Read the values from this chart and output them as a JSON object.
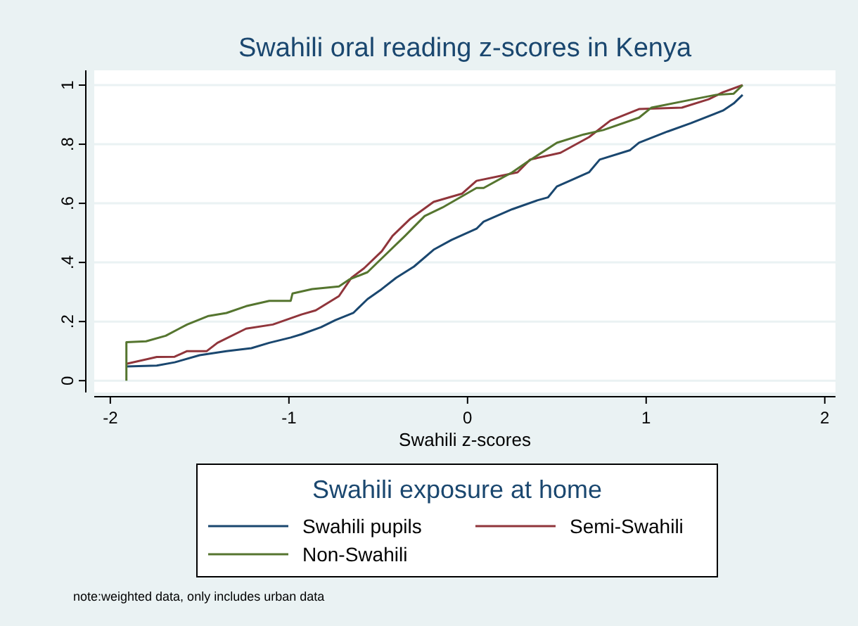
{
  "chart_data": {
    "type": "line",
    "title": "Swahili oral reading z-scores in Kenya",
    "xlabel": "Swahili z-scores",
    "legend_title": "Swahili exposure at home",
    "legend": "bottom",
    "grid": "y",
    "line_style": "solid",
    "marker": "none",
    "xlim": [
      -2.09,
      2.06
    ],
    "xticks": [
      -2,
      -1,
      0,
      1,
      2
    ],
    "ylim": [
      -0.04,
      1.05
    ],
    "yticks": [
      0,
      {
        "value": 0.2,
        "label": ".2"
      },
      {
        "value": 0.4,
        "label": ".4"
      },
      {
        "value": 0.6,
        "label": ".6"
      },
      {
        "value": 0.8,
        "label": ".8"
      },
      1
    ],
    "series": [
      {
        "name": "Swahili pupils",
        "color": "#1a476f",
        "x": [
          -1.91,
          -1.74,
          -1.64,
          -1.5,
          -1.35,
          -1.21,
          -1.11,
          -0.99,
          -0.93,
          -0.82,
          -0.74,
          -0.64,
          -0.56,
          -0.48,
          -0.4,
          -0.3,
          -0.19,
          -0.09,
          0.05,
          0.09,
          0.25,
          0.39,
          0.45,
          0.5,
          0.68,
          0.74,
          0.91,
          0.96,
          1.12,
          1.25,
          1.43,
          1.49,
          1.54
        ],
        "values": [
          0.048,
          0.051,
          0.062,
          0.086,
          0.1,
          0.11,
          0.128,
          0.146,
          0.157,
          0.181,
          0.205,
          0.229,
          0.276,
          0.31,
          0.348,
          0.386,
          0.443,
          0.476,
          0.514,
          0.538,
          0.58,
          0.61,
          0.62,
          0.657,
          0.705,
          0.748,
          0.78,
          0.805,
          0.843,
          0.871,
          0.914,
          0.938,
          0.967
        ]
      },
      {
        "name": "Semi-Swahili",
        "color": "#90353b",
        "x": [
          -1.91,
          -1.74,
          -1.64,
          -1.57,
          -1.46,
          -1.4,
          -1.24,
          -1.09,
          -0.93,
          -0.85,
          -0.72,
          -0.65,
          -0.58,
          -0.48,
          -0.42,
          -0.32,
          -0.19,
          -0.03,
          0.05,
          0.28,
          0.35,
          0.52,
          0.68,
          0.8,
          0.96,
          1.2,
          1.35,
          1.43,
          1.54
        ],
        "values": [
          0.057,
          0.08,
          0.081,
          0.1,
          0.1,
          0.128,
          0.176,
          0.19,
          0.224,
          0.238,
          0.286,
          0.348,
          0.38,
          0.438,
          0.49,
          0.548,
          0.605,
          0.633,
          0.676,
          0.705,
          0.748,
          0.771,
          0.824,
          0.88,
          0.919,
          0.924,
          0.952,
          0.976,
          1.0
        ]
      },
      {
        "name": "Non-Swahili",
        "color": "#55752f",
        "x": [
          -1.91,
          -1.91,
          -1.8,
          -1.69,
          -1.57,
          -1.45,
          -1.35,
          -1.24,
          -1.11,
          -0.99,
          -0.98,
          -0.87,
          -0.72,
          -0.66,
          -0.56,
          -0.48,
          -0.35,
          -0.24,
          -0.14,
          0.05,
          0.09,
          0.25,
          0.33,
          0.5,
          0.65,
          0.76,
          0.96,
          1.03,
          1.23,
          1.39,
          1.49,
          1.54
        ],
        "values": [
          0.0,
          0.13,
          0.133,
          0.152,
          0.19,
          0.219,
          0.229,
          0.252,
          0.27,
          0.27,
          0.295,
          0.31,
          0.319,
          0.343,
          0.367,
          0.414,
          0.49,
          0.557,
          0.586,
          0.652,
          0.652,
          0.705,
          0.738,
          0.805,
          0.833,
          0.848,
          0.89,
          0.924,
          0.948,
          0.967,
          0.971,
          1.0
        ]
      }
    ],
    "annotations": [
      "note:weighted data, only includes urban data"
    ]
  }
}
